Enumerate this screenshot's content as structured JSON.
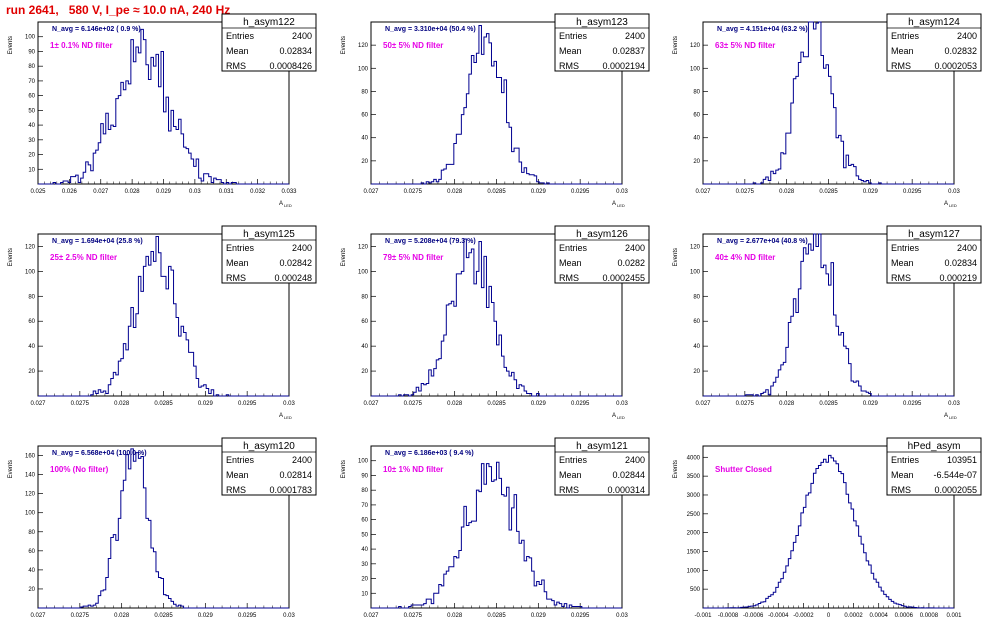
{
  "page": {
    "title": "run 2641,   580 V, I_pe ≈ 10.0 nA, 240 Hz"
  },
  "colors": {
    "title": "#e00000",
    "histogram": "#000090",
    "annotation": "#e600e6",
    "avg_text": "#000080"
  },
  "chart_data": [
    {
      "type": "histogram",
      "name": "h_asym122",
      "stats": {
        "Entries": "2400",
        "Mean": "0.02834",
        "RMS": "0.0008426"
      },
      "avg_text": "N_avg = 6.146e+02 ( 0.9 %)",
      "filter_text": "1± 0.1% ND filter",
      "ylabel": "Events",
      "xlabel": "A_LED",
      "xlim": [
        0.025,
        0.033
      ],
      "xticks": [
        "0.025",
        "0.026",
        "0.027",
        "0.028",
        "0.029",
        "0.03",
        "0.031",
        "0.032",
        "0.033"
      ],
      "ylim": [
        0,
        110
      ],
      "yticks": [
        "10",
        "20",
        "30",
        "40",
        "50",
        "60",
        "70",
        "80",
        "90",
        "100"
      ],
      "nbins": 100,
      "mean": 0.02834,
      "rms": 0.0008426,
      "entries": 2400
    },
    {
      "type": "histogram",
      "name": "h_asym123",
      "stats": {
        "Entries": "2400",
        "Mean": "0.02837",
        "RMS": "0.0002194"
      },
      "avg_text": "N_avg = 3.310e+04 (50.4 %)",
      "filter_text": "50± 5% ND filter",
      "ylabel": "Events",
      "xlabel": "A_LED",
      "xlim": [
        0.027,
        0.03
      ],
      "xticks": [
        "0.027",
        "0.0275",
        "0.028",
        "0.0285",
        "0.029",
        "0.0295",
        "0.03"
      ],
      "ylim": [
        0,
        140
      ],
      "yticks": [
        "20",
        "40",
        "60",
        "80",
        "100",
        "120"
      ],
      "nbins": 100,
      "mean": 0.02837,
      "rms": 0.0002194,
      "entries": 2400
    },
    {
      "type": "histogram",
      "name": "h_asym124",
      "stats": {
        "Entries": "2400",
        "Mean": "0.02832",
        "RMS": "0.0002053"
      },
      "avg_text": "N_avg = 4.151e+04 (63.2 %)",
      "filter_text": "63± 5% ND filter",
      "ylabel": "Events",
      "xlabel": "A_LED",
      "xlim": [
        0.027,
        0.03
      ],
      "xticks": [
        "0.027",
        "0.0275",
        "0.028",
        "0.0285",
        "0.029",
        "0.0295",
        "0.03"
      ],
      "ylim": [
        0,
        140
      ],
      "yticks": [
        "20",
        "40",
        "60",
        "80",
        "100",
        "120"
      ],
      "nbins": 100,
      "mean": 0.02832,
      "rms": 0.0002053,
      "entries": 2400
    },
    {
      "type": "histogram",
      "name": "h_asym125",
      "stats": {
        "Entries": "2400",
        "Mean": "0.02842",
        "RMS": "0.000248"
      },
      "avg_text": "N_avg = 1.694e+04 (25.8 %)",
      "filter_text": "25± 2.5% ND filter",
      "ylabel": "Events",
      "xlabel": "A_LED",
      "xlim": [
        0.027,
        0.03
      ],
      "xticks": [
        "0.027",
        "0.0275",
        "0.028",
        "0.0285",
        "0.029",
        "0.0295",
        "0.03"
      ],
      "ylim": [
        0,
        130
      ],
      "yticks": [
        "20",
        "40",
        "60",
        "80",
        "100",
        "120"
      ],
      "nbins": 100,
      "mean": 0.02842,
      "rms": 0.000248,
      "entries": 2400
    },
    {
      "type": "histogram",
      "name": "h_asym126",
      "stats": {
        "Entries": "2400",
        "Mean": "0.0282",
        "RMS": "0.0002455"
      },
      "avg_text": "N_avg = 5.208e+04 (79.3 %)",
      "filter_text": "79± 5% ND filter",
      "ylabel": "Events",
      "xlabel": "A_LED",
      "xlim": [
        0.027,
        0.03
      ],
      "xticks": [
        "0.027",
        "0.0275",
        "0.028",
        "0.0285",
        "0.029",
        "0.0295",
        "0.03"
      ],
      "ylim": [
        0,
        130
      ],
      "yticks": [
        "20",
        "40",
        "60",
        "80",
        "100",
        "120"
      ],
      "nbins": 100,
      "mean": 0.0282,
      "rms": 0.0002455,
      "entries": 2400
    },
    {
      "type": "histogram",
      "name": "h_asym127",
      "stats": {
        "Entries": "2400",
        "Mean": "0.02834",
        "RMS": "0.000219"
      },
      "avg_text": "N_avg = 2.677e+04 (40.8 %)",
      "filter_text": "40± 4% ND filter",
      "ylabel": "Events",
      "xlabel": "A_LED",
      "xlim": [
        0.027,
        0.03
      ],
      "xticks": [
        "0.027",
        "0.0275",
        "0.028",
        "0.0285",
        "0.029",
        "0.0295",
        "0.03"
      ],
      "ylim": [
        0,
        130
      ],
      "yticks": [
        "20",
        "40",
        "60",
        "80",
        "100",
        "120"
      ],
      "nbins": 100,
      "mean": 0.02834,
      "rms": 0.000219,
      "entries": 2400
    },
    {
      "type": "histogram",
      "name": "h_asym120",
      "stats": {
        "Entries": "2400",
        "Mean": "0.02814",
        "RMS": "0.0001783"
      },
      "avg_text": "N_avg = 6.568e+04 (100.0 %)",
      "filter_text": "100% (No filter)",
      "ylabel": "Events",
      "xlabel": "A_LED",
      "xlim": [
        0.027,
        0.03
      ],
      "xticks": [
        "0.027",
        "0.0275",
        "0.028",
        "0.0285",
        "0.029",
        "0.0295",
        "0.03"
      ],
      "ylim": [
        0,
        170
      ],
      "yticks": [
        "20",
        "40",
        "60",
        "80",
        "100",
        "120",
        "140",
        "160"
      ],
      "nbins": 100,
      "mean": 0.02814,
      "rms": 0.0001783,
      "entries": 2400
    },
    {
      "type": "histogram",
      "name": "h_asym121",
      "stats": {
        "Entries": "2400",
        "Mean": "0.02844",
        "RMS": "0.000314"
      },
      "avg_text": "N_avg = 6.186e+03 ( 9.4 %)",
      "filter_text": "10± 1% ND filter",
      "ylabel": "Events",
      "xlabel": "A_LED",
      "xlim": [
        0.027,
        0.03
      ],
      "xticks": [
        "0.027",
        "0.0275",
        "0.028",
        "0.0285",
        "0.029",
        "0.0295",
        "0.03"
      ],
      "ylim": [
        0,
        110
      ],
      "yticks": [
        "10",
        "20",
        "30",
        "40",
        "50",
        "60",
        "70",
        "80",
        "90",
        "100"
      ],
      "nbins": 100,
      "mean": 0.02844,
      "rms": 0.000314,
      "entries": 2400
    },
    {
      "type": "histogram",
      "name": "hPed_asym",
      "stats": {
        "Entries": "103951",
        "Mean": "-6.544e-07",
        "RMS": "0.0002055"
      },
      "avg_text": "",
      "filter_text": "Shutter Closed",
      "ylabel": "Events",
      "xlabel": "",
      "xlim": [
        -0.001,
        0.001
      ],
      "xticks": [
        "-0.001",
        "-0.0008",
        "-0.0006",
        "-0.0004",
        "-0.0002",
        "0",
        "0.0002",
        "0.0004",
        "0.0006",
        "0.0008",
        "0.001"
      ],
      "ylim": [
        0,
        4300
      ],
      "yticks": [
        "500",
        "1000",
        "1500",
        "2000",
        "2500",
        "3000",
        "3500",
        "4000"
      ],
      "nbins": 100,
      "mean": -6.544e-07,
      "rms": 0.0002055,
      "entries": 103951
    }
  ]
}
